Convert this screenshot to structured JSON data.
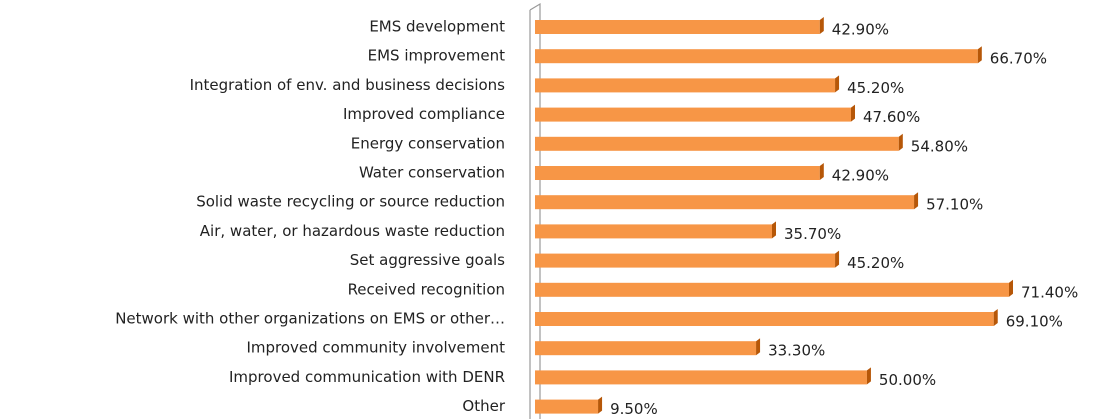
{
  "chart_data": {
    "type": "bar",
    "orientation": "horizontal",
    "color": "#f79646",
    "categories": [
      "EMS development",
      "EMS improvement",
      "Integration of env. and business decisions",
      "Improved compliance",
      "Energy conservation",
      "Water conservation",
      "Solid waste recycling or source reduction",
      "Air, water, or hazardous waste reduction",
      "Set aggressive goals",
      "Received recognition",
      "Network with other organizations on EMS or other…",
      "Improved community involvement",
      "Improved communication with DENR",
      "Other"
    ],
    "values": [
      42.9,
      66.7,
      45.2,
      47.6,
      54.8,
      42.9,
      57.1,
      35.7,
      45.2,
      71.4,
      69.1,
      33.3,
      50.0,
      9.5
    ],
    "value_labels": [
      "42.90%",
      "66.70%",
      "45.20%",
      "47.60%",
      "54.80%",
      "42.90%",
      "57.10%",
      "35.70%",
      "45.20%",
      "71.40%",
      "69.10%",
      "33.30%",
      "50.00%",
      "9.50%"
    ]
  }
}
